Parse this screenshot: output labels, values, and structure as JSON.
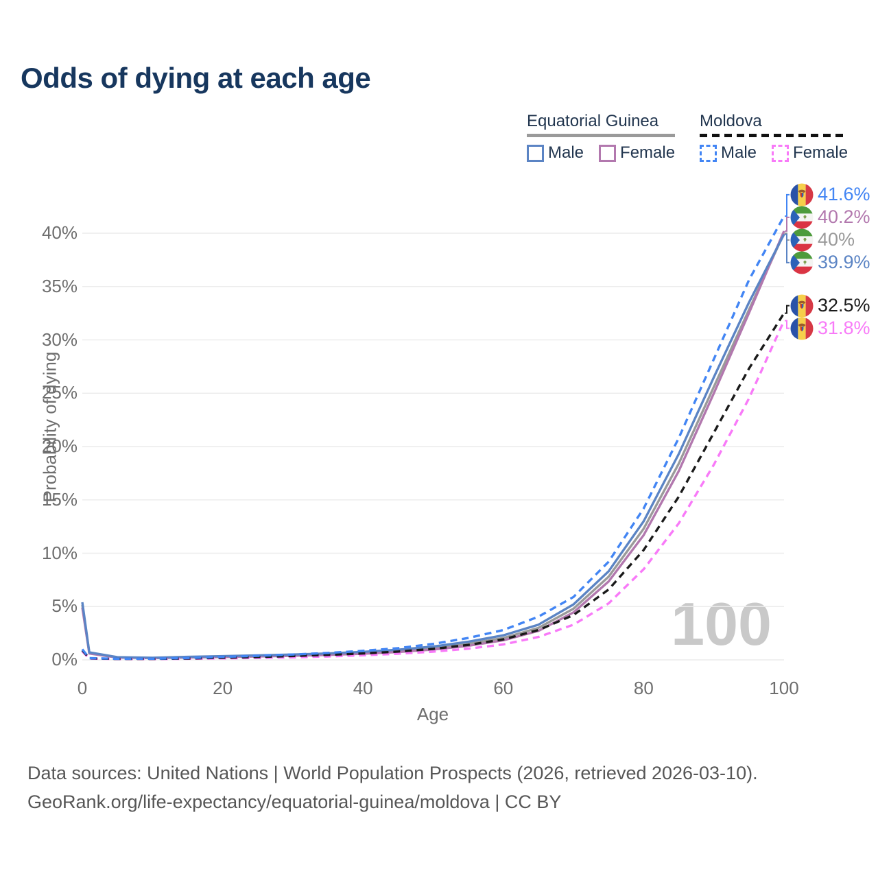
{
  "title": "Odds of dying at each age",
  "legend": {
    "groups": [
      {
        "label": "Equatorial Guinea",
        "underline_style": "solid",
        "underline_color": "#9a9a9a",
        "items": [
          {
            "label": "Male",
            "color": "#5b84c4",
            "dashed": false
          },
          {
            "label": "Female",
            "color": "#b278ae",
            "dashed": false
          }
        ]
      },
      {
        "label": "Moldova",
        "underline_style": "dashed",
        "underline_color": "#111111",
        "items": [
          {
            "label": "Male",
            "color": "#4285f4",
            "dashed": true
          },
          {
            "label": "Female",
            "color": "#f87af8",
            "dashed": true
          }
        ]
      }
    ]
  },
  "chart_data": {
    "type": "line",
    "title": "Odds of dying at each age",
    "xlabel": "Age",
    "ylabel": "Probability of dying",
    "xlim": [
      0,
      100
    ],
    "ylim": [
      0,
      43
    ],
    "grid": "horizontal",
    "legend_position": "top-right",
    "watermark": "100",
    "x_ticks": [
      {
        "label": "0",
        "value": 0
      },
      {
        "label": "20",
        "value": 20
      },
      {
        "label": "40",
        "value": 40
      },
      {
        "label": "60",
        "value": 60
      },
      {
        "label": "80",
        "value": 80
      },
      {
        "label": "100",
        "value": 100
      }
    ],
    "y_ticks": [
      {
        "label": "0%",
        "value": 0
      },
      {
        "label": "5%",
        "value": 5
      },
      {
        "label": "10%",
        "value": 10
      },
      {
        "label": "15%",
        "value": 15
      },
      {
        "label": "20%",
        "value": 20
      },
      {
        "label": "25%",
        "value": 25
      },
      {
        "label": "30%",
        "value": 30
      },
      {
        "label": "35%",
        "value": 35
      },
      {
        "label": "40%",
        "value": 40
      }
    ],
    "x": [
      0,
      1,
      5,
      10,
      15,
      20,
      25,
      30,
      35,
      40,
      45,
      50,
      55,
      60,
      65,
      70,
      75,
      80,
      85,
      90,
      95,
      100
    ],
    "series": [
      {
        "key": "equatorial-guinea-total",
        "name": "Equatorial Guinea Total",
        "color": "#9a9a9a",
        "dashed": false,
        "flag": "equatorial-guinea",
        "end_label": "40%",
        "values": [
          5.15,
          0.65,
          0.23,
          0.18,
          0.25,
          0.31,
          0.37,
          0.44,
          0.53,
          0.66,
          0.85,
          1.1,
          1.5,
          2.05,
          3.0,
          4.8,
          7.8,
          12.3,
          18.4,
          25.6,
          32.8,
          40.0
        ]
      },
      {
        "key": "equatorial-guinea-female",
        "name": "Equatorial Guinea Female",
        "color": "#b278ae",
        "dashed": false,
        "flag": "equatorial-guinea",
        "end_label": "40.2%",
        "values": [
          4.9,
          0.6,
          0.21,
          0.17,
          0.22,
          0.27,
          0.32,
          0.38,
          0.46,
          0.58,
          0.74,
          0.97,
          1.32,
          1.83,
          2.72,
          4.45,
          7.35,
          11.7,
          17.7,
          25.0,
          32.5,
          40.2
        ]
      },
      {
        "key": "equatorial-guinea-male",
        "name": "Equatorial Guinea Male",
        "color": "#5b84c4",
        "dashed": false,
        "flag": "equatorial-guinea",
        "end_label": "39.9%",
        "values": [
          5.4,
          0.7,
          0.25,
          0.2,
          0.28,
          0.35,
          0.42,
          0.5,
          0.6,
          0.75,
          0.95,
          1.25,
          1.7,
          2.3,
          3.3,
          5.2,
          8.3,
          13.0,
          19.3,
          26.5,
          33.5,
          39.9
        ]
      },
      {
        "key": "moldova-female",
        "name": "Moldova Female",
        "color": "#f87af8",
        "dashed": true,
        "flag": "moldova",
        "end_label": "31.8%",
        "values": [
          0.8,
          0.12,
          0.08,
          0.08,
          0.1,
          0.14,
          0.18,
          0.24,
          0.32,
          0.43,
          0.57,
          0.77,
          1.05,
          1.45,
          2.15,
          3.3,
          5.3,
          8.5,
          12.8,
          18.3,
          24.5,
          31.8
        ]
      },
      {
        "key": "moldova-total",
        "name": "Moldova Total",
        "color": "#1a1a1a",
        "dashed": true,
        "flag": "moldova",
        "end_label": "32.5%",
        "values": [
          0.9,
          0.14,
          0.09,
          0.09,
          0.13,
          0.2,
          0.27,
          0.36,
          0.47,
          0.6,
          0.78,
          1.03,
          1.4,
          1.92,
          2.8,
          4.2,
          6.6,
          10.3,
          15.3,
          21.3,
          27.3,
          32.5
        ]
      },
      {
        "key": "moldova-male",
        "name": "Moldova Male",
        "color": "#4285f4",
        "dashed": true,
        "flag": "moldova",
        "end_label": "41.6%",
        "values": [
          1.0,
          0.16,
          0.1,
          0.11,
          0.17,
          0.28,
          0.38,
          0.5,
          0.65,
          0.85,
          1.1,
          1.5,
          2.05,
          2.8,
          4.05,
          5.9,
          9.2,
          14.2,
          20.8,
          28.2,
          35.6,
          41.6
        ]
      }
    ]
  },
  "flag_colors": {
    "moldova": {
      "blue": "#2a52a8",
      "yellow": "#f6cf4b",
      "red": "#d63945",
      "eagle": "#9a5b2b",
      "shield_red": "#c0392f",
      "shield_blue": "#3a62b0"
    },
    "equatorial_guinea": {
      "green": "#4d9b3c",
      "white": "#f4f4f2",
      "red": "#da3443",
      "blue": "#2b62b8",
      "emblem": "#7fa050"
    }
  },
  "footer": {
    "line1": "Data sources: United Nations | World Population Prospects (2026, retrieved 2026-03-10).",
    "line2": "GeoRank.org/life-expectancy/equatorial-guinea/moldova | CC BY"
  }
}
